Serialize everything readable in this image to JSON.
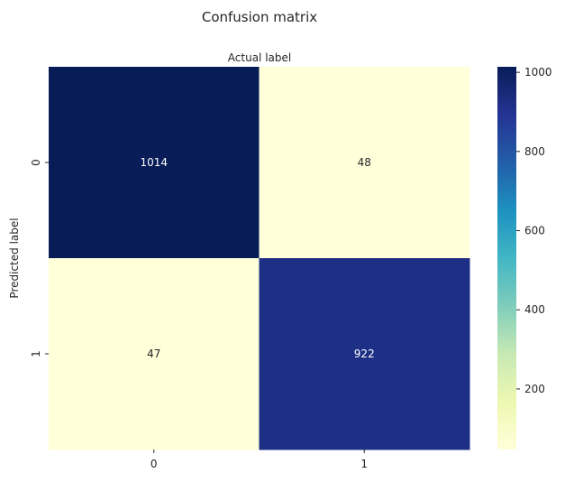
{
  "chart_data": {
    "type": "heatmap",
    "title": "Confusion matrix",
    "xlabel": "Actual label",
    "ylabel": "Predicted label",
    "x_categories": [
      "0",
      "1"
    ],
    "y_categories": [
      "0",
      "1"
    ],
    "values": [
      [
        1014,
        48
      ],
      [
        47,
        922
      ]
    ],
    "colormap": "YlGnBu",
    "colormap_stops": [
      "#ffffd9",
      "#edf8b1",
      "#c7e9b4",
      "#7fcdbb",
      "#41b6c4",
      "#1d91c0",
      "#225ea8",
      "#253494",
      "#081d58"
    ],
    "colorbar": {
      "range": [
        47,
        1014
      ],
      "ticks": [
        200,
        400,
        600,
        800,
        1000
      ]
    },
    "annotation_colors": {
      "light": "#ffffff",
      "dark": "#262626"
    }
  }
}
